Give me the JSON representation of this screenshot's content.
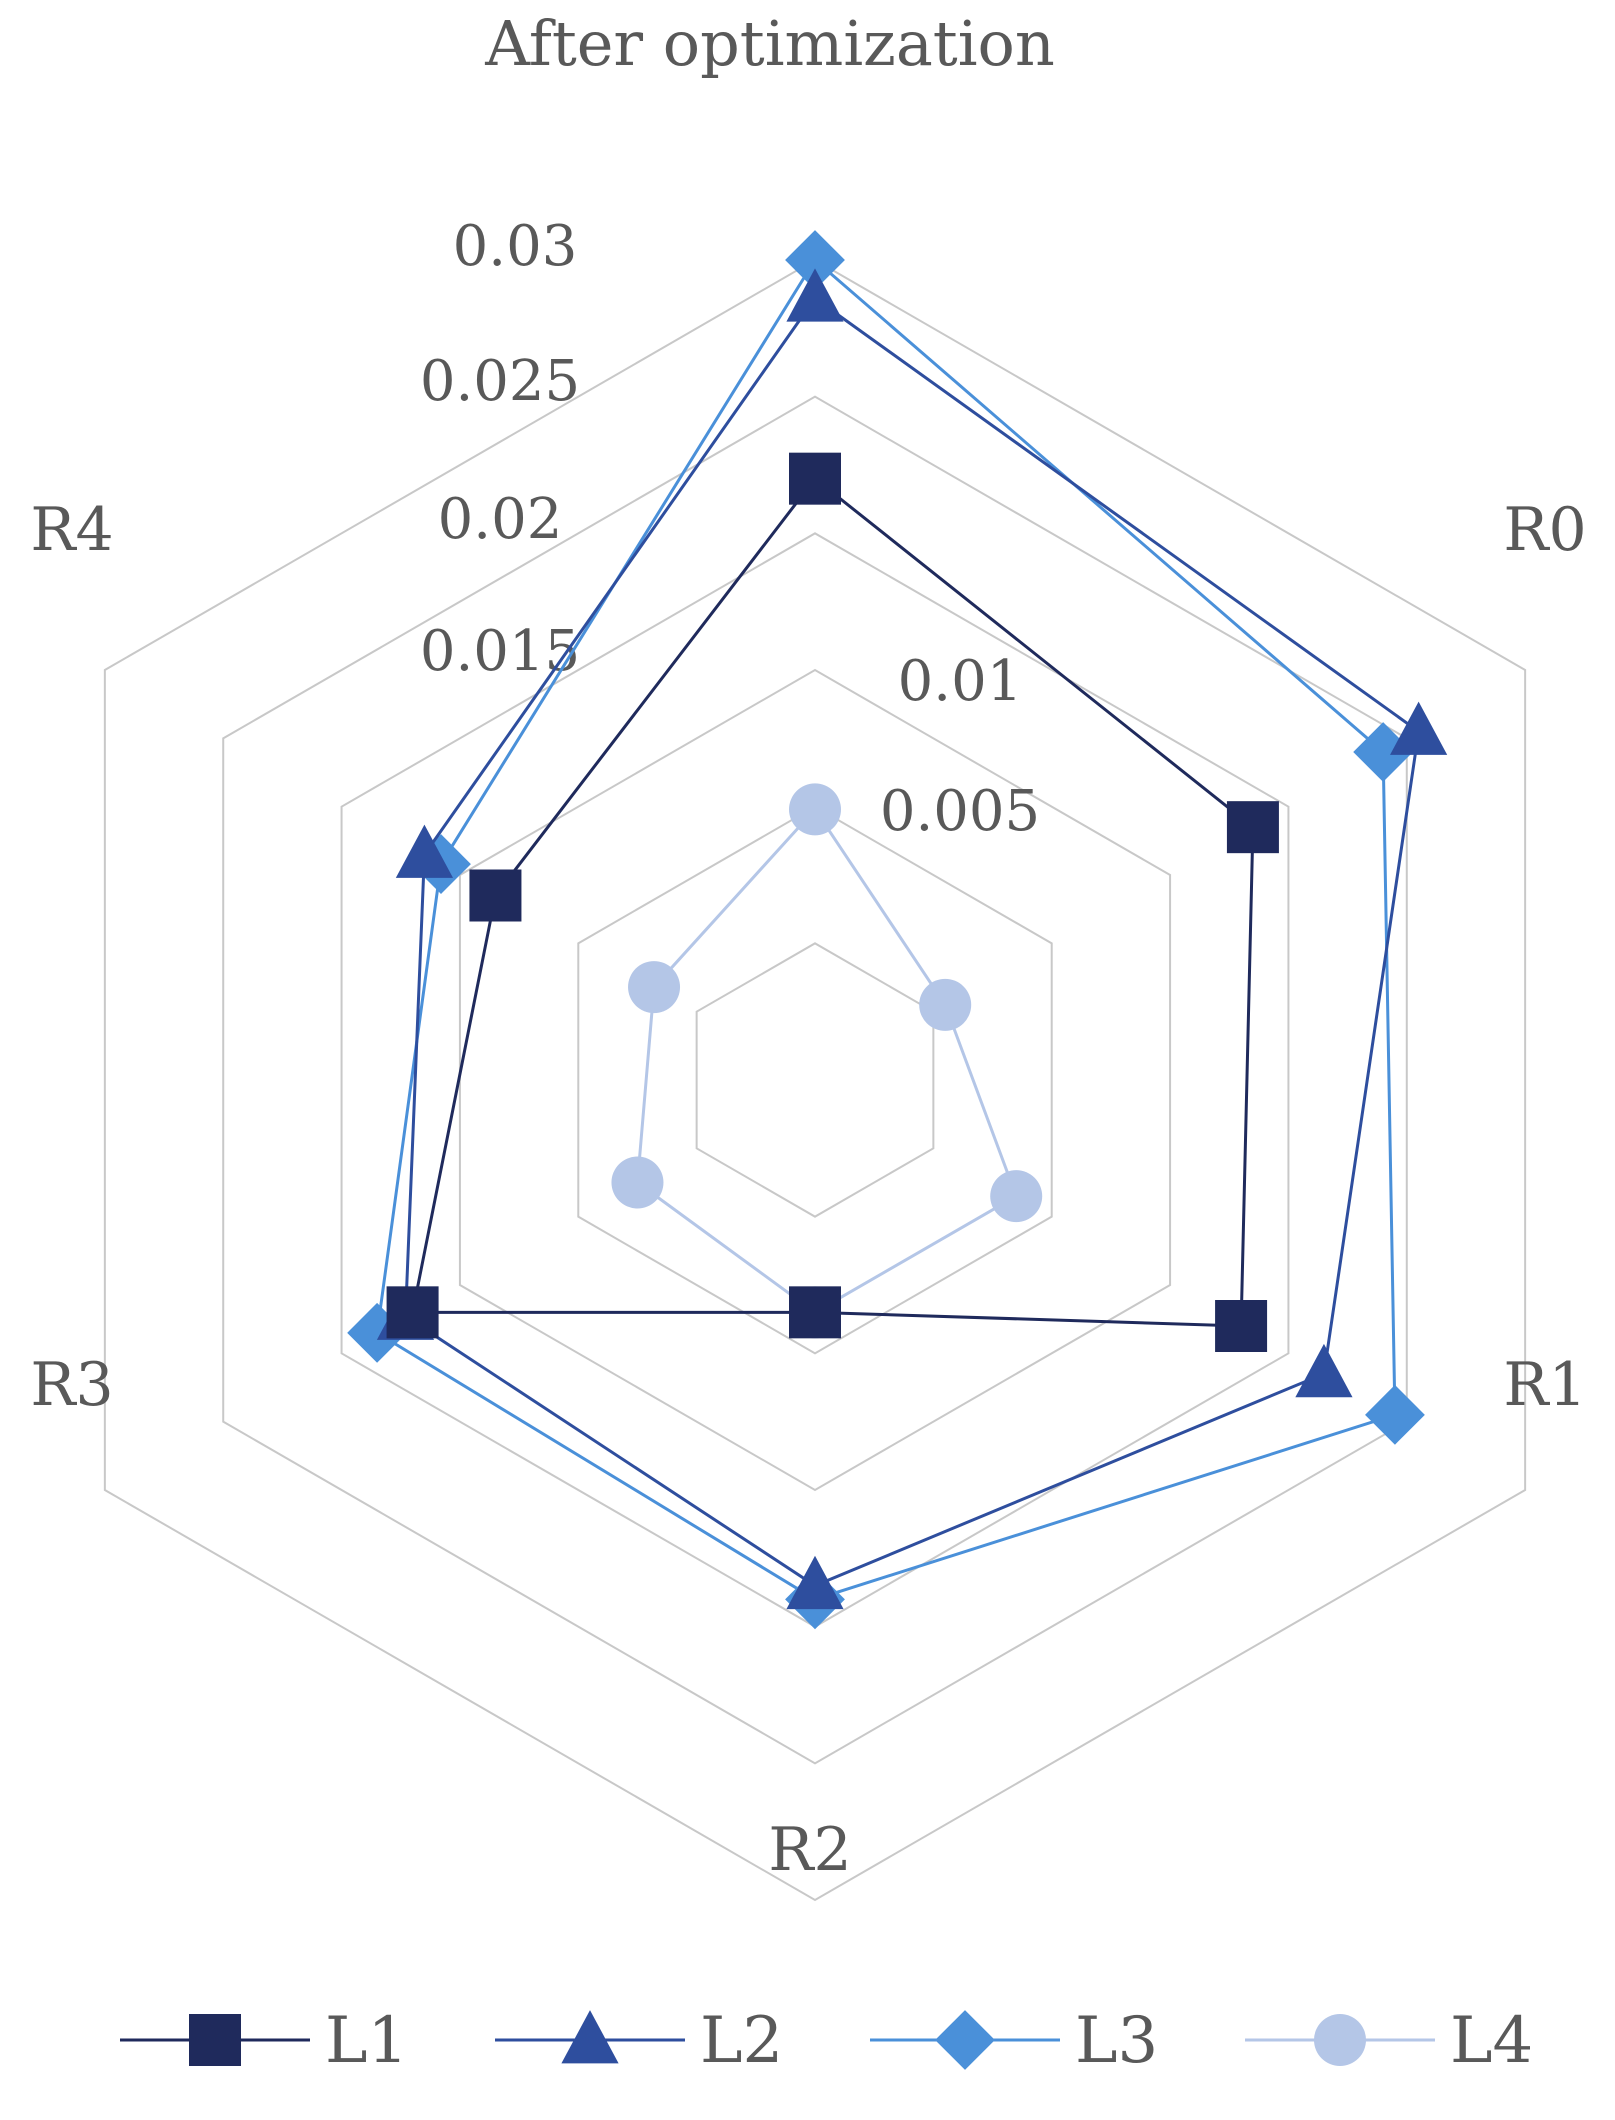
{
  "chart_data": {
    "type": "radar",
    "title": "After optimization",
    "categories": [
      "R0",
      "R1",
      "R2",
      "R3",
      "R4",
      ""
    ],
    "rmin": 0,
    "rmax": 0.03,
    "ticks": [
      0,
      0.005,
      0.01,
      0.015,
      0.02,
      0.025,
      0.03
    ],
    "tick_labels": [
      "",
      "0.005",
      "0.01",
      "0.015",
      "0.02",
      "0.025",
      "0.03"
    ],
    "legend_position": "bottom",
    "series": [
      {
        "name": "L1",
        "marker": "square",
        "color": "#1f2a5c",
        "values": [
          0.0185,
          0.018,
          0.0085,
          0.017,
          0.0135,
          0.022
        ]
      },
      {
        "name": "L2",
        "marker": "triangle",
        "color": "#2e4e9e",
        "values": [
          0.0255,
          0.0215,
          0.0185,
          0.0173,
          0.0165,
          0.0286
        ]
      },
      {
        "name": "L3",
        "marker": "diamond",
        "color": "#4a90d9",
        "values": [
          0.024,
          0.0245,
          0.019,
          0.0185,
          0.0158,
          0.03
        ]
      },
      {
        "name": "L4",
        "marker": "circle",
        "color": "#b4c6e7",
        "values": [
          0.0055,
          0.0085,
          0.0085,
          0.0075,
          0.0068,
          0.0099
        ]
      }
    ]
  }
}
